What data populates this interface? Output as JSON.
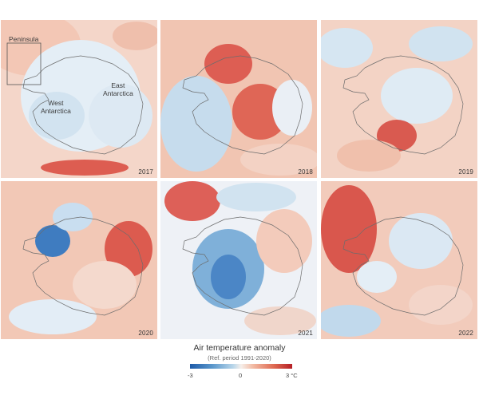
{
  "panels": [
    {
      "year": "2017",
      "annotations": {
        "peninsula": "Peninsula",
        "west": "West\nAntarctica",
        "east": "East\nAntarctica"
      }
    },
    {
      "year": "2018"
    },
    {
      "year": "2019"
    },
    {
      "year": "2020"
    },
    {
      "year": "2021"
    },
    {
      "year": "2022"
    }
  ],
  "legend": {
    "title": "Air temperature anomaly",
    "subtitle": "(Ref. period 1991-2020)",
    "min_label": "-3",
    "mid_label": "0",
    "max_label": "3 °C",
    "min_value": -3,
    "max_value": 3,
    "colors": {
      "cold": "#1d5aa8",
      "neutral": "#f6efea",
      "warm": "#b51f26"
    }
  }
}
